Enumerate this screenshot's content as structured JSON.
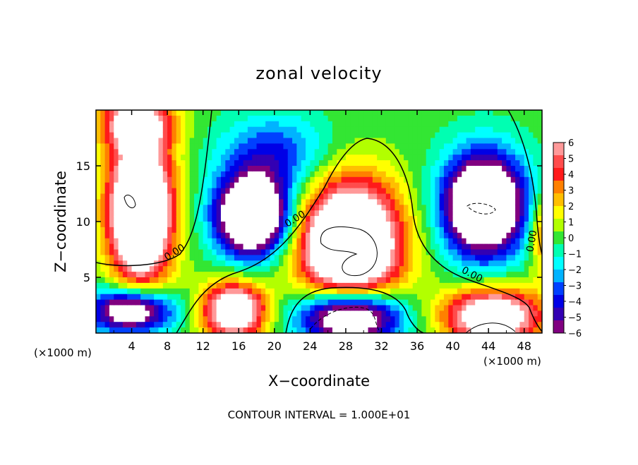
{
  "chart_data": {
    "type": "heatmap",
    "title": "zonal velocity",
    "xlabel": "X−coordinate",
    "ylabel": "Z−coordinate",
    "x_unit_left": "(×1000 m)",
    "x_unit_right": "(×1000 m)",
    "footer": "CONTOUR INTERVAL = 1.000E+01",
    "xlim": [
      0,
      50
    ],
    "ylim": [
      0,
      20
    ],
    "x_ticks": [
      4,
      8,
      12,
      16,
      20,
      24,
      28,
      32,
      36,
      40,
      44,
      48
    ],
    "x_tick_labels": [
      "4",
      "8",
      "12",
      "16",
      "20",
      "24",
      "28",
      "32",
      "36",
      "40",
      "44",
      "48"
    ],
    "y_ticks": [
      5,
      10,
      15
    ],
    "y_tick_labels": [
      "5",
      "10",
      "15"
    ],
    "contour_labels": [
      {
        "text": "0.00",
        "x": 9.0,
        "y": 7.0,
        "angle": -32
      },
      {
        "text": "0.00",
        "x": 22.5,
        "y": 10.0,
        "angle": -32
      },
      {
        "text": "0.00",
        "x": 42.0,
        "y": 5.0,
        "angle": 28
      },
      {
        "text": "0.00",
        "x": 49.2,
        "y": 8.2,
        "angle": -80
      }
    ],
    "colorbar": {
      "ticks": [
        6,
        5,
        4,
        3,
        2,
        1,
        0,
        -1,
        -2,
        -3,
        -4,
        -5,
        -6
      ],
      "tick_labels": [
        "6",
        "5",
        "4",
        "3",
        "2",
        "1",
        "0",
        "−1",
        "−2",
        "−3",
        "−4",
        "−5",
        "−6"
      ],
      "colors": [
        "#ff9999",
        "#ff4c4c",
        "#ff1a1a",
        "#ff8000",
        "#ffbf00",
        "#ffff00",
        "#b2ff00",
        "#33e633",
        "#00ffb2",
        "#00ffff",
        "#00b3ff",
        "#0040ff",
        "#0000e6",
        "#3300b3",
        "#800080"
      ]
    },
    "features": [
      {
        "name": "positive-core-left",
        "x": 5.0,
        "y": 11.0,
        "rx": 3.5,
        "ry": 6.5,
        "amp": 14
      },
      {
        "name": "positive-cap-left",
        "x": 4.5,
        "y": 19.0,
        "rx": 4.0,
        "ry": 2.5,
        "amp": 7
      },
      {
        "name": "negative-core-left-center",
        "x": 17.5,
        "y": 10.5,
        "rx": 4.0,
        "ry": 3.5,
        "amp": -13
      },
      {
        "name": "positive-core-center",
        "x": 28.5,
        "y": 8.0,
        "rx": 5.5,
        "ry": 5.5,
        "amp": 14
      },
      {
        "name": "negative-core-right",
        "x": 43.5,
        "y": 11.5,
        "rx": 4.5,
        "ry": 4.5,
        "amp": -13
      },
      {
        "name": "positive-bottom-left",
        "x": 15.5,
        "y": 2.0,
        "rx": 3.5,
        "ry": 2.5,
        "amp": 10
      },
      {
        "name": "negative-bottom-left",
        "x": 4.0,
        "y": 2.0,
        "rx": 4.5,
        "ry": 2.0,
        "amp": -10
      },
      {
        "name": "negative-bottom-center",
        "x": 28.5,
        "y": 1.5,
        "rx": 5.5,
        "ry": 2.5,
        "amp": -12
      },
      {
        "name": "positive-bottom-right",
        "x": 44.5,
        "y": 1.5,
        "rx": 5.5,
        "ry": 2.5,
        "amp": 10
      },
      {
        "name": "negative-upper-center",
        "x": 20.0,
        "y": 16.0,
        "rx": 6.0,
        "ry": 3.5,
        "amp": -4
      },
      {
        "name": "positive-right-edge",
        "x": 50.0,
        "y": 9.0,
        "rx": 1.5,
        "ry": 3.5,
        "amp": 4
      }
    ]
  }
}
